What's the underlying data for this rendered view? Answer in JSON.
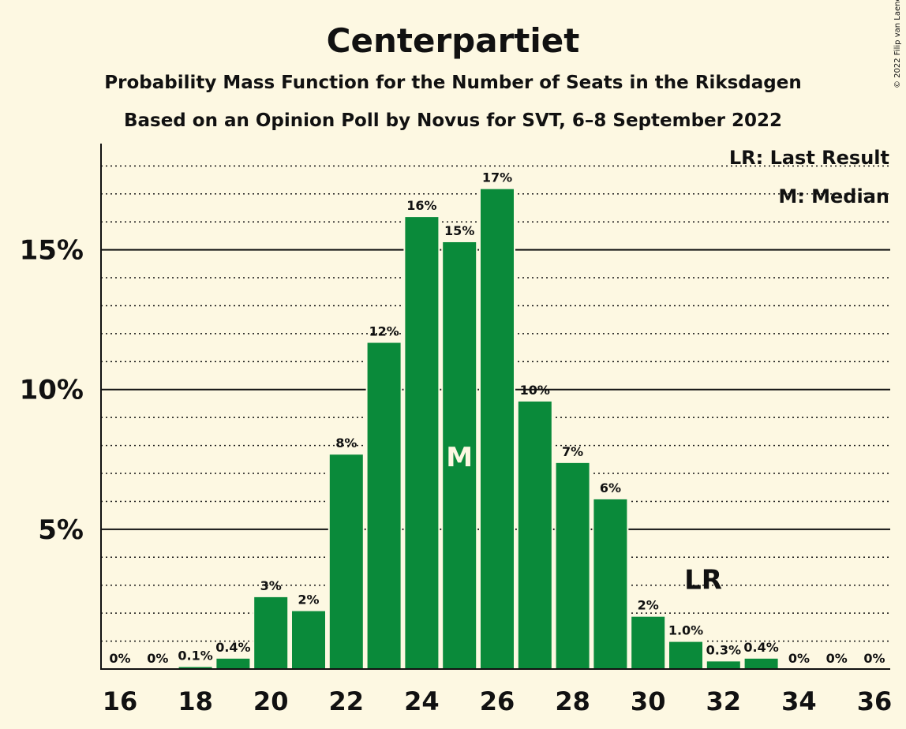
{
  "title": "Centerpartiet",
  "subtitle1": "Probability Mass Function for the Number of Seats in the Riksdagen",
  "subtitle2": "Based on an Opinion Poll by Novus for SVT, 6–8 September 2022",
  "copyright": "© 2022 Filip van Laenen",
  "legend": {
    "lr": "LR: Last Result",
    "m": "M: Median"
  },
  "colors": {
    "bar": "#0a8a3a",
    "background": "#fdf8e2",
    "text": "#111111"
  },
  "chart_data": {
    "type": "bar",
    "title": "Centerpartiet",
    "x": [
      16,
      17,
      18,
      19,
      20,
      21,
      22,
      23,
      24,
      25,
      26,
      27,
      28,
      29,
      30,
      31,
      32,
      33,
      34,
      35,
      36
    ],
    "values": [
      0,
      0,
      0.1,
      0.4,
      2.6,
      2.1,
      7.7,
      11.7,
      16.2,
      15.3,
      17.2,
      9.6,
      7.4,
      6.1,
      1.9,
      1.0,
      0.3,
      0.4,
      0,
      0,
      0
    ],
    "labels": [
      "0%",
      "0%",
      "0.1%",
      "0.4%",
      "3%",
      "2%",
      "8%",
      "12%",
      "16%",
      "15%",
      "17%",
      "10%",
      "7%",
      "6%",
      "2%",
      "1.0%",
      "0.3%",
      "0.4%",
      "0%",
      "0%",
      "0%"
    ],
    "x_tick_labels": [
      "16",
      "18",
      "20",
      "22",
      "24",
      "26",
      "28",
      "30",
      "32",
      "34",
      "36"
    ],
    "y_tick_labels": [
      "5%",
      "10%",
      "15%"
    ],
    "y_ticks": [
      5,
      10,
      15
    ],
    "ylim": [
      0,
      18.8
    ],
    "median": 25,
    "median_label": "M",
    "last_result": 31,
    "last_result_label": "LR",
    "grid": true,
    "legend_position": "top-right"
  }
}
